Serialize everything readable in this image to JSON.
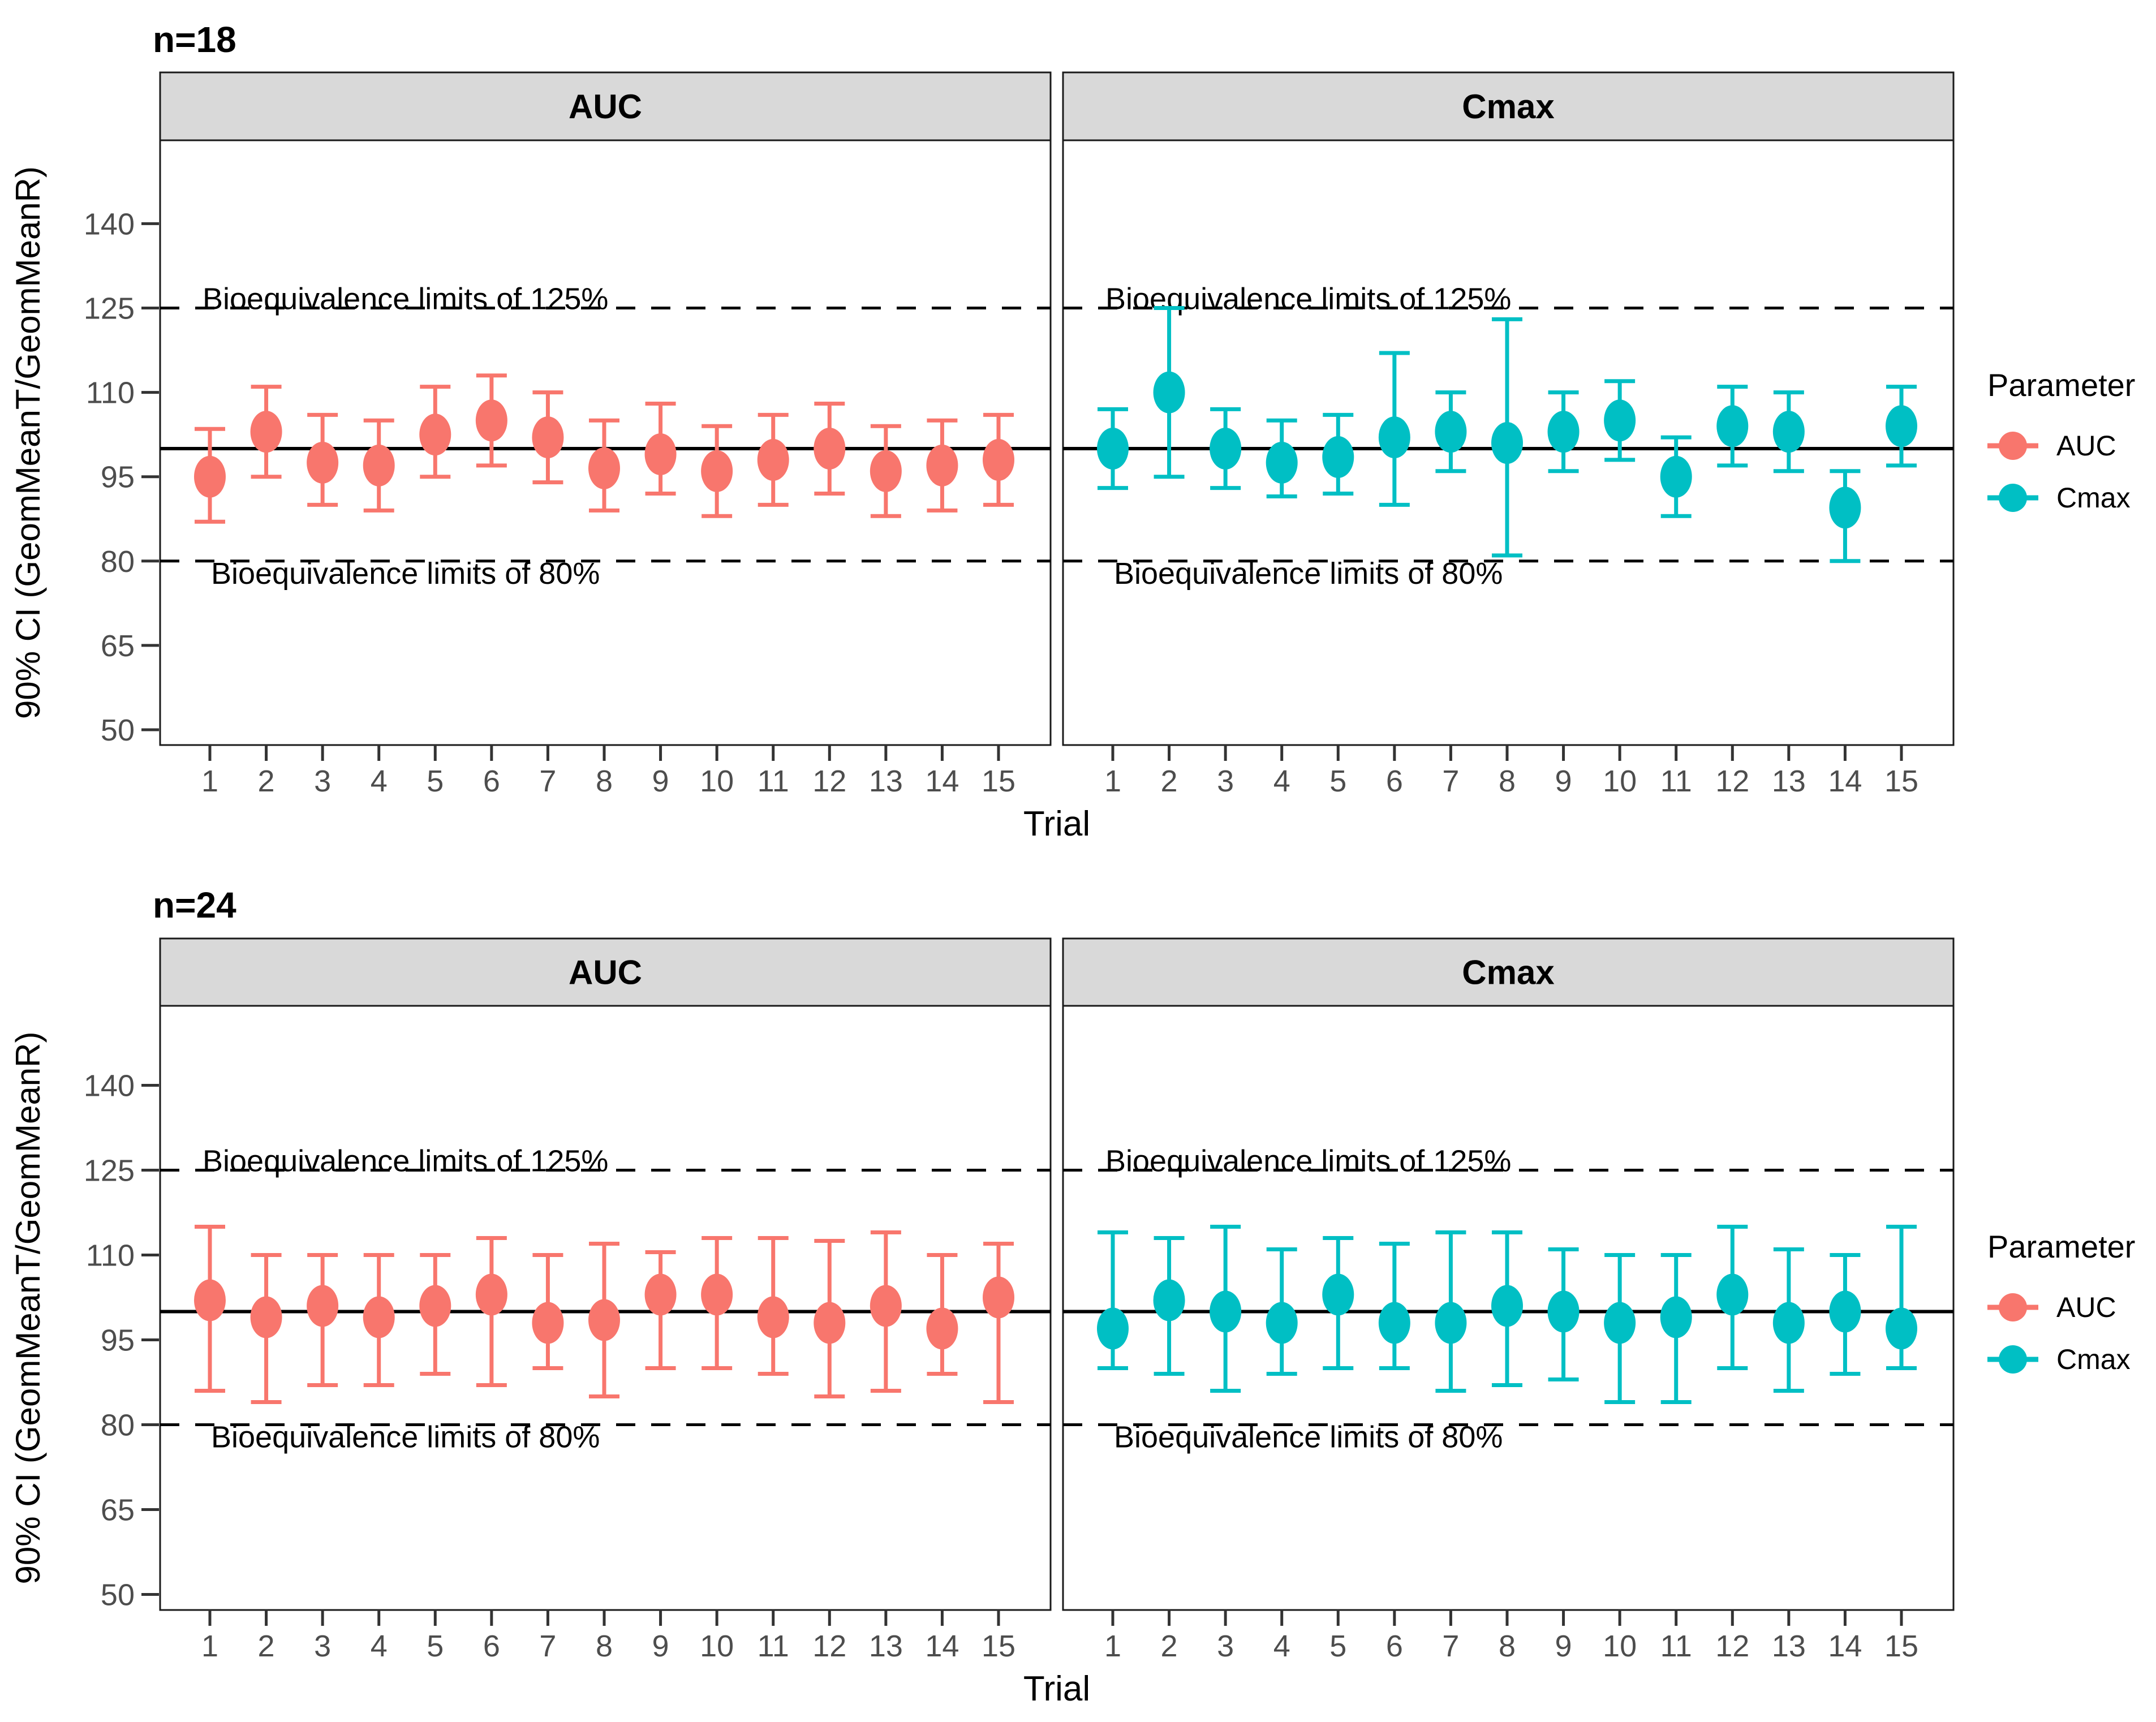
{
  "figure": {
    "y_axis_label": "90% CI (GeomMeanT/GeomMeanR)",
    "x_axis_label": "Trial",
    "annotation_upper": "Bioequivalence limits of 125%",
    "annotation_lower": "Bioequivalence limits of 80%",
    "colors": {
      "auc": "#F8766D",
      "cmax": "#00BFC4",
      "strip_background": "#D9D9D9",
      "axis_text": "#4D4D4D",
      "panel_border": "#1A1A1A",
      "reference_line": "#000000"
    },
    "legend": {
      "title": "Parameter",
      "items": [
        {
          "label": "AUC",
          "color": "#F8766D"
        },
        {
          "label": "Cmax",
          "color": "#00BFC4"
        }
      ]
    }
  },
  "chart_data": [
    {
      "type": "scatter",
      "subtype": "point-with-90pct-CI-errorbars",
      "title": "n=18",
      "xlabel": "Trial",
      "ylabel": "90% CI (GeomMeanT/GeomMeanR)",
      "x": [
        1,
        2,
        3,
        4,
        5,
        6,
        7,
        8,
        9,
        10,
        11,
        12,
        13,
        14,
        15
      ],
      "yticks": [
        50,
        65,
        80,
        95,
        110,
        125,
        140
      ],
      "ylim": [
        44,
        153
      ],
      "reference_lines": {
        "solid": 100,
        "upper_dashed": 125,
        "lower_dashed": 80
      },
      "grid": "off",
      "legend_position": "right",
      "facets": [
        {
          "label": "AUC",
          "series": "AUC",
          "y": [
            95,
            103,
            97.5,
            97,
            102.5,
            105,
            102,
            96.5,
            99,
            96,
            98,
            100,
            96,
            97,
            98
          ],
          "ymin": [
            87,
            95,
            90,
            89,
            95,
            97,
            94,
            89,
            92,
            88,
            90,
            92,
            88,
            89,
            90
          ],
          "ymax": [
            103.5,
            111,
            106,
            105,
            111,
            113,
            110,
            105,
            108,
            104,
            106,
            108,
            104,
            105,
            106
          ]
        },
        {
          "label": "Cmax",
          "series": "Cmax",
          "y": [
            100,
            110,
            100,
            97.5,
            98.5,
            102,
            103,
            101,
            103,
            105,
            95,
            104,
            103,
            89.5,
            104
          ],
          "ymin": [
            93,
            95,
            93,
            91.5,
            92,
            90,
            96,
            81,
            96,
            98,
            88,
            97,
            96,
            80,
            97
          ],
          "ymax": [
            107,
            125,
            107,
            105,
            106,
            117,
            110,
            123,
            110,
            112,
            102,
            111,
            110,
            96,
            111
          ]
        }
      ]
    },
    {
      "type": "scatter",
      "subtype": "point-with-90pct-CI-errorbars",
      "title": "n=24",
      "xlabel": "Trial",
      "ylabel": "90% CI (GeomMeanT/GeomMeanR)",
      "x": [
        1,
        2,
        3,
        4,
        5,
        6,
        7,
        8,
        9,
        10,
        11,
        12,
        13,
        14,
        15
      ],
      "yticks": [
        50,
        65,
        80,
        95,
        110,
        125,
        140
      ],
      "ylim": [
        44,
        153
      ],
      "reference_lines": {
        "solid": 100,
        "upper_dashed": 125,
        "lower_dashed": 80
      },
      "grid": "off",
      "legend_position": "right",
      "facets": [
        {
          "label": "AUC",
          "series": "AUC",
          "y": [
            102,
            99,
            101,
            99,
            101,
            103,
            98,
            98.5,
            103,
            103,
            99,
            98,
            101,
            97,
            102.5
          ],
          "ymin": [
            86,
            84,
            87,
            87,
            89,
            87,
            90,
            85,
            90,
            90,
            89,
            85,
            86,
            89,
            84
          ],
          "ymax": [
            115,
            110,
            110,
            110,
            110,
            113,
            110,
            112,
            110.5,
            113,
            113,
            112.5,
            114,
            110,
            112
          ]
        },
        {
          "label": "Cmax",
          "series": "Cmax",
          "y": [
            97,
            102,
            100,
            98,
            103,
            98,
            98,
            101,
            100,
            98,
            99,
            103,
            98,
            100,
            97
          ],
          "ymin": [
            90,
            89,
            86,
            89,
            90,
            90,
            86,
            87,
            88,
            84,
            84,
            90,
            86,
            89,
            90
          ],
          "ymax": [
            114,
            113,
            115,
            111,
            113,
            112,
            114,
            114,
            111,
            110,
            110,
            115,
            111,
            110,
            115
          ]
        }
      ]
    }
  ]
}
